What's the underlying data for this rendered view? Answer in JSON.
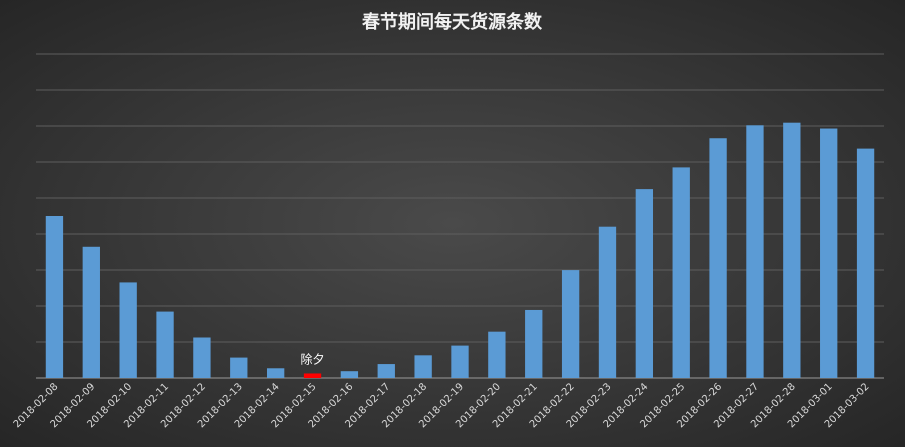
{
  "chart_data": {
    "type": "bar",
    "title": "春节期间每天货源条数",
    "xlabel": "",
    "ylabel": "",
    "y_tick_labels_shown": false,
    "gridlines": true,
    "ylim": [
      0,
      100
    ],
    "categories": [
      "2018-02-08",
      "2018-02-09",
      "2018-02-10",
      "2018-02-11",
      "2018-02-12",
      "2018-02-13",
      "2018-02-14",
      "2018-02-15",
      "2018-02-16",
      "2018-02-17",
      "2018-02-18",
      "2018-02-19",
      "2018-02-20",
      "2018-02-21",
      "2018-02-22",
      "2018-02-23",
      "2018-02-24",
      "2018-02-25",
      "2018-02-26",
      "2018-02-27",
      "2018-02-28",
      "2018-03-01",
      "2018-03-02"
    ],
    "values": [
      50,
      40.5,
      29.5,
      20.5,
      12.5,
      6.3,
      3,
      1.4,
      2.1,
      4.3,
      7,
      10,
      14.3,
      21,
      33.3,
      46.7,
      58.3,
      65,
      74,
      78,
      78.8,
      77,
      70.8
    ],
    "bar_color": "#5b9bd5",
    "highlight": {
      "category": "2018-02-15",
      "color": "#ff0000",
      "label": "除夕"
    }
  }
}
